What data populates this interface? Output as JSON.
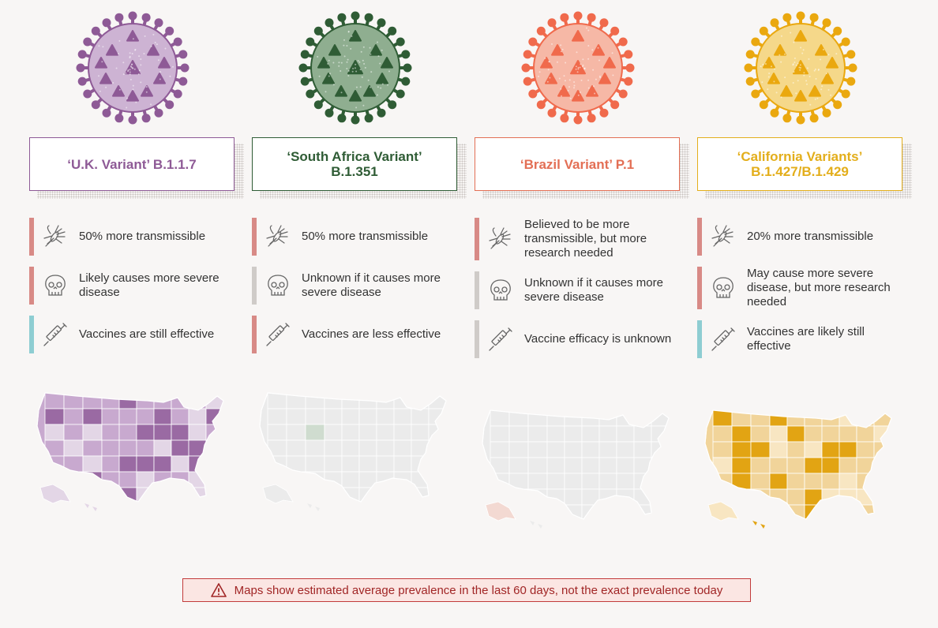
{
  "colors": {
    "high": "#d88a86",
    "unknown": "#cfcbc8",
    "good": "#8ecdd2"
  },
  "variants": [
    {
      "title_line1": "‘U.K. Variant’ B.1.1.7",
      "title_line2": "",
      "color": "#8e5a96",
      "virus_fill": "#cdb3d3",
      "virus_dark": "#8e5a96",
      "attributes": [
        {
          "icon": "mosquito-icon",
          "level": "high",
          "text": "50% more transmissible"
        },
        {
          "icon": "skull-icon",
          "level": "high",
          "text": "Likely causes more severe disease"
        },
        {
          "icon": "syringe-icon",
          "level": "good",
          "text": "Vaccines are still effective"
        }
      ]
    },
    {
      "title_line1": "‘South Africa Variant’",
      "title_line2": "B.1.351",
      "color": "#2f5c35",
      "virus_fill": "#8fae90",
      "virus_dark": "#2f5c35",
      "attributes": [
        {
          "icon": "mosquito-icon",
          "level": "high",
          "text": "50% more transmissible"
        },
        {
          "icon": "skull-icon",
          "level": "unknown",
          "text": "Unknown if it causes more severe disease"
        },
        {
          "icon": "syringe-icon",
          "level": "high",
          "text": "Vaccines are less effective"
        }
      ]
    },
    {
      "title_line1": "‘Brazil Variant’ P.1",
      "title_line2": "",
      "color": "#e36f55",
      "virus_fill": "#f6b8a6",
      "virus_dark": "#f06a4c",
      "attributes": [
        {
          "icon": "mosquito-icon",
          "level": "high",
          "text": "Believed to be more transmissible, but more research needed"
        },
        {
          "icon": "skull-icon",
          "level": "unknown",
          "text": "Unknown if it causes more severe disease"
        },
        {
          "icon": "syringe-icon",
          "level": "unknown",
          "text": "Vaccine efficacy is unknown"
        }
      ]
    },
    {
      "title_line1": "‘California Variants’",
      "title_line2": "B.1.427/B.1.429",
      "color": "#e3ae1b",
      "virus_fill": "#f5d88a",
      "virus_dark": "#eaa80f",
      "attributes": [
        {
          "icon": "mosquito-icon",
          "level": "high",
          "text": "20% more transmissible"
        },
        {
          "icon": "skull-icon",
          "level": "high",
          "text": "May cause more severe disease, but more research needed"
        },
        {
          "icon": "syringe-icon",
          "level": "good",
          "text": "Vaccines are likely still effective"
        }
      ]
    }
  ],
  "maps": [
    {
      "name": "uk-variant-map",
      "base": "#c8a9cf",
      "accent": "#9a6aa3",
      "light": "#e3d6e6",
      "prevalence": 0.6
    },
    {
      "name": "south-africa-variant-map",
      "base": "#ebebeb",
      "accent": "#cfdccf",
      "light": "#ebebeb",
      "prevalence": 0.05
    },
    {
      "name": "brazil-variant-map",
      "base": "#ebebeb",
      "accent": "#f2d0c8",
      "light": "#ebebeb",
      "prevalence": 0.03
    },
    {
      "name": "california-variants-map",
      "base": "#f1d49a",
      "accent": "#e2a413",
      "light": "#f8e6c2",
      "prevalence": 0.5
    }
  ],
  "footnote": {
    "text": "Maps show estimated average prevalence in the last 60 days, not the exact prevalence today",
    "icon": "warning-icon"
  }
}
